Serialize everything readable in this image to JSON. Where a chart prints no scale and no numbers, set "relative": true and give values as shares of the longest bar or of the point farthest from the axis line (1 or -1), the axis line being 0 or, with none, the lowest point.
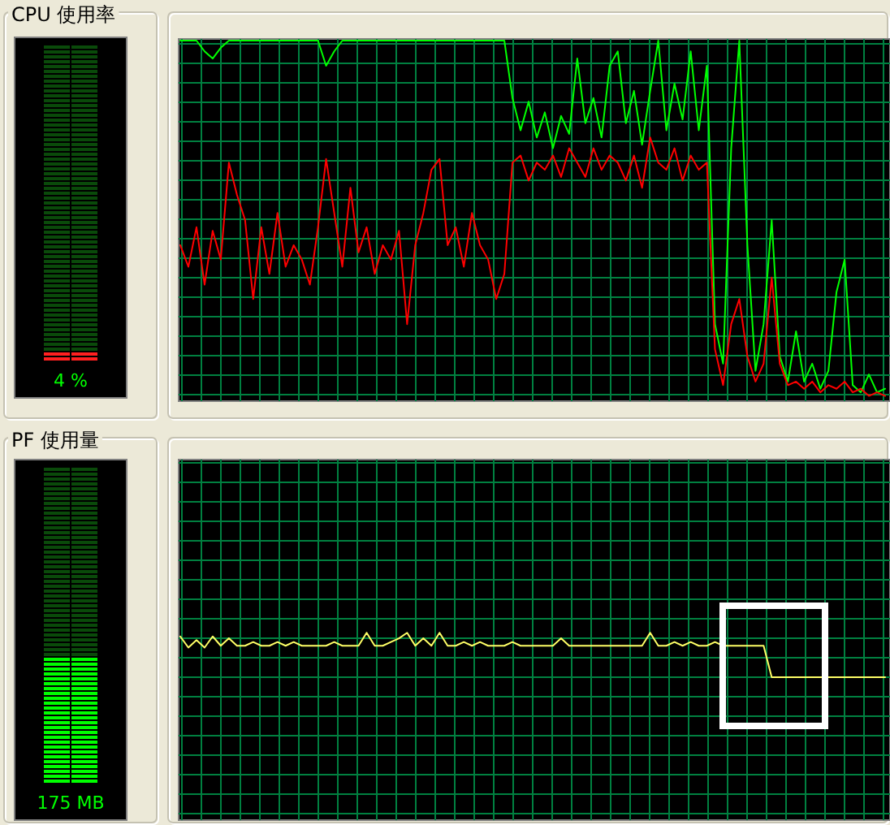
{
  "chart_data": [
    {
      "type": "other",
      "title": "CPU 使用率",
      "annotations": [
        "4 %"
      ]
    },
    {
      "type": "line",
      "relative": true,
      "grid": true,
      "categories": [
        null,
        null,
        null,
        null,
        null,
        null,
        null,
        null,
        null,
        null,
        null,
        null,
        null,
        null,
        null,
        null,
        null,
        null,
        null,
        null,
        null,
        null,
        null,
        null,
        null,
        null,
        null,
        null,
        null,
        null,
        null,
        null,
        null,
        null,
        null,
        null,
        null,
        null,
        null,
        null,
        null,
        null,
        null,
        null,
        null,
        null,
        null,
        null,
        null,
        null,
        null,
        null,
        null,
        null,
        null,
        null,
        null,
        null,
        null,
        null,
        null,
        null,
        null,
        null,
        null,
        null,
        null,
        null,
        null,
        null,
        null,
        null,
        null,
        null,
        null,
        null,
        null,
        null,
        null,
        null,
        null,
        null,
        null,
        null,
        null,
        null,
        null,
        null
      ],
      "series": [
        {
          "color": "#00ff00",
          "values": [
            1,
            1,
            1,
            0.97,
            0.95,
            0.98,
            1,
            1,
            1,
            1,
            1,
            1,
            1,
            1,
            1,
            1,
            1,
            1,
            0.93,
            0.97,
            1,
            1,
            1,
            1,
            1,
            1,
            1,
            1,
            1,
            1,
            1,
            1,
            1,
            1,
            1,
            1,
            1,
            1,
            1,
            1,
            1,
            0.84,
            0.75,
            0.83,
            0.73,
            0.8,
            0.7,
            0.79,
            0.74,
            0.95,
            0.77,
            0.84,
            0.73,
            0.93,
            0.97,
            0.77,
            0.86,
            0.71,
            0.86,
            1,
            0.75,
            0.88,
            0.78,
            0.97,
            0.75,
            0.93,
            0.21,
            0.1,
            0.7,
            1,
            0.43,
            0.08,
            0.21,
            0.5,
            0.12,
            0.05,
            0.19,
            0.05,
            0.1,
            0.03,
            0.08,
            0.3,
            0.39,
            0.04,
            0.02,
            0.07,
            0.02,
            0.03
          ]
        },
        {
          "color": "#ff0000",
          "values": [
            0.43,
            0.37,
            0.48,
            0.32,
            0.47,
            0.39,
            0.66,
            0.57,
            0.5,
            0.28,
            0.48,
            0.35,
            0.52,
            0.37,
            0.43,
            0.39,
            0.32,
            0.48,
            0.67,
            0.52,
            0.37,
            0.59,
            0.41,
            0.48,
            0.35,
            0.43,
            0.39,
            0.47,
            0.21,
            0.43,
            0.52,
            0.64,
            0.67,
            0.43,
            0.48,
            0.37,
            0.52,
            0.43,
            0.39,
            0.28,
            0.35,
            0.66,
            0.68,
            0.61,
            0.66,
            0.64,
            0.68,
            0.62,
            0.7,
            0.66,
            0.62,
            0.7,
            0.64,
            0.68,
            0.66,
            0.61,
            0.68,
            0.59,
            0.73,
            0.66,
            0.64,
            0.7,
            0.61,
            0.68,
            0.64,
            0.66,
            0.14,
            0.04,
            0.21,
            0.28,
            0.12,
            0.05,
            0.1,
            0.34,
            0.1,
            0.04,
            0.05,
            0.03,
            0.05,
            0.02,
            0.04,
            0.03,
            0.05,
            0.02,
            0.03,
            0.01,
            0.02,
            0.01
          ]
        }
      ]
    },
    {
      "type": "other",
      "title": "PF 使用量",
      "annotations": [
        "175 MB"
      ]
    },
    {
      "type": "line",
      "relative": true,
      "grid": true,
      "categories": [
        null,
        null,
        null,
        null,
        null,
        null,
        null,
        null,
        null,
        null,
        null,
        null,
        null,
        null,
        null,
        null,
        null,
        null,
        null,
        null,
        null,
        null,
        null,
        null,
        null,
        null,
        null,
        null,
        null,
        null,
        null,
        null,
        null,
        null,
        null,
        null,
        null,
        null,
        null,
        null,
        null,
        null,
        null,
        null,
        null,
        null,
        null,
        null,
        null,
        null,
        null,
        null,
        null,
        null,
        null,
        null,
        null,
        null,
        null,
        null,
        null,
        null,
        null,
        null,
        null,
        null,
        null,
        null,
        null,
        null,
        null,
        null,
        null,
        null,
        null,
        null,
        null,
        null,
        null,
        null,
        null,
        null,
        null,
        null,
        null,
        null,
        null,
        null
      ],
      "series": [
        {
          "color": "#ffff66",
          "values": [
            0.98,
            0.92,
            0.96,
            0.92,
            0.98,
            0.93,
            0.97,
            0.93,
            0.93,
            0.95,
            0.93,
            0.93,
            0.95,
            0.93,
            0.95,
            0.93,
            0.93,
            0.93,
            0.93,
            0.95,
            0.93,
            0.93,
            0.93,
            1,
            0.93,
            0.93,
            0.95,
            0.97,
            1,
            0.93,
            0.97,
            0.93,
            1,
            0.93,
            0.93,
            0.95,
            0.93,
            0.95,
            0.93,
            0.93,
            0.93,
            0.95,
            0.93,
            0.93,
            0.93,
            0.93,
            0.93,
            0.97,
            0.93,
            0.93,
            0.93,
            0.93,
            0.93,
            0.93,
            0.93,
            0.93,
            0.93,
            0.93,
            1,
            0.93,
            0.93,
            0.95,
            0.93,
            0.95,
            0.93,
            0.93,
            0.95,
            0.93,
            0.93,
            0.93,
            0.93,
            0.93,
            0.93,
            0.76,
            0.76,
            0.76,
            0.76,
            0.76,
            0.76,
            0.76,
            0.76,
            0.76,
            0.76,
            0.76,
            0.76,
            0.76,
            0.76,
            0.76
          ]
        }
      ]
    }
  ]
}
